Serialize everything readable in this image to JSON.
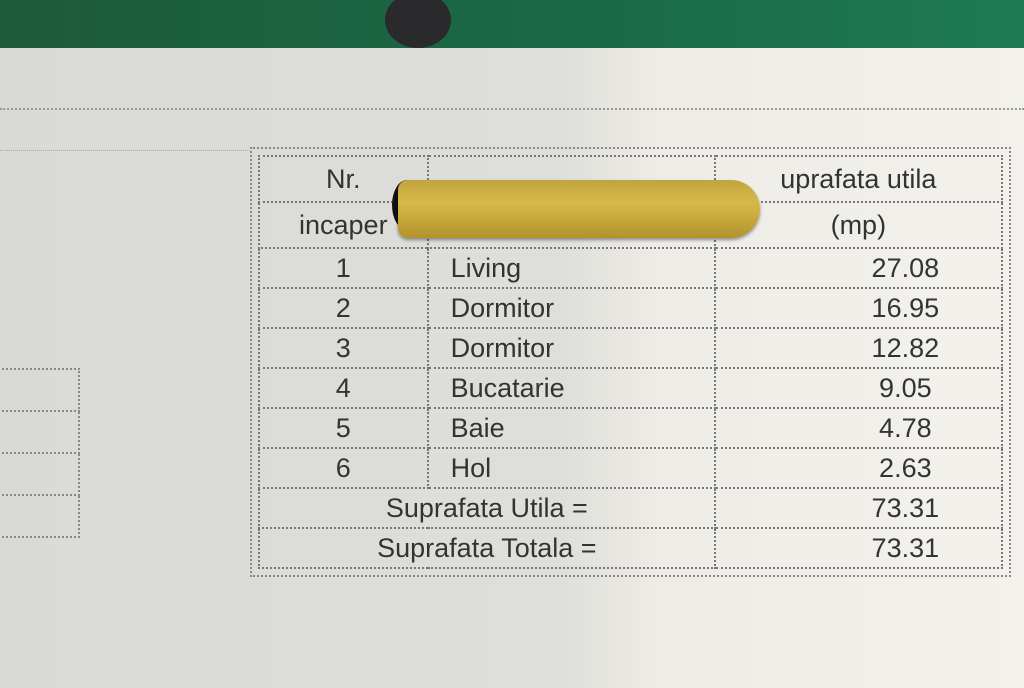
{
  "table": {
    "headers": {
      "nr": "Nr.",
      "nr2": "incaper",
      "area": "uprafata utila",
      "area2": "(mp)"
    },
    "rows": [
      {
        "nr": "1",
        "name": "Living",
        "area": "27.08"
      },
      {
        "nr": "2",
        "name": "Dormitor",
        "area": "16.95"
      },
      {
        "nr": "3",
        "name": "Dormitor",
        "area": "12.82"
      },
      {
        "nr": "4",
        "name": "Bucatarie",
        "area": "9.05"
      },
      {
        "nr": "5",
        "name": "Baie",
        "area": "4.78"
      },
      {
        "nr": "6",
        "name": "Hol",
        "area": "2.63"
      }
    ],
    "totals": [
      {
        "label": "Suprafata Utila =",
        "value": "73.31"
      },
      {
        "label": "Suprafata Totala =",
        "value": "73.31"
      }
    ]
  },
  "colors": {
    "binder": "#1d6a48",
    "fastener": "#c9ab42"
  }
}
